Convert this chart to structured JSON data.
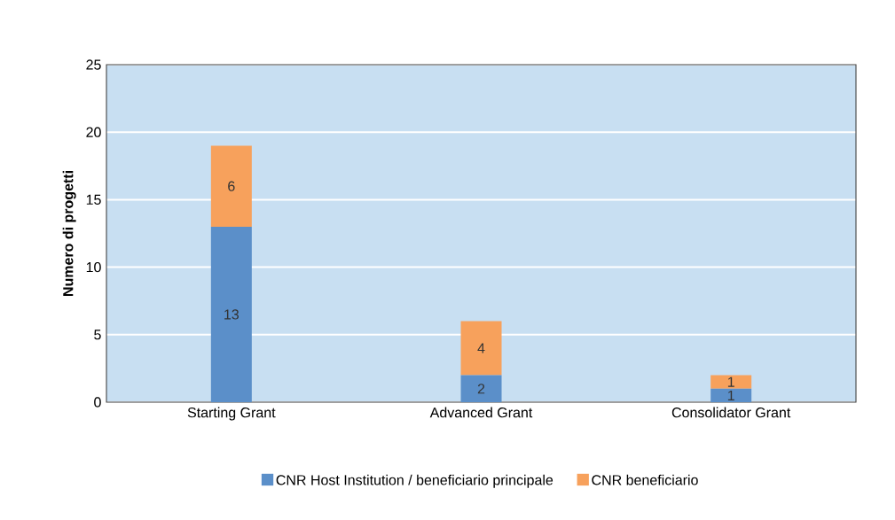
{
  "chart_data": {
    "type": "bar",
    "stacked": true,
    "ylabel": "Numero di progetti",
    "categories": [
      "Starting Grant",
      "Advanced Grant",
      "Consolidator Grant"
    ],
    "series": [
      {
        "name": "CNR Host Institution / beneficiario principale",
        "color": "#5b8fc9",
        "values": [
          13,
          2,
          1
        ]
      },
      {
        "name": "CNR beneficiario",
        "color": "#f7a15c",
        "values": [
          6,
          4,
          1
        ]
      }
    ],
    "ylim": [
      0,
      25
    ],
    "yticks": [
      0,
      5,
      10,
      15,
      20,
      25
    ],
    "grid": "y",
    "legend": "bottom",
    "data_labels": true
  }
}
